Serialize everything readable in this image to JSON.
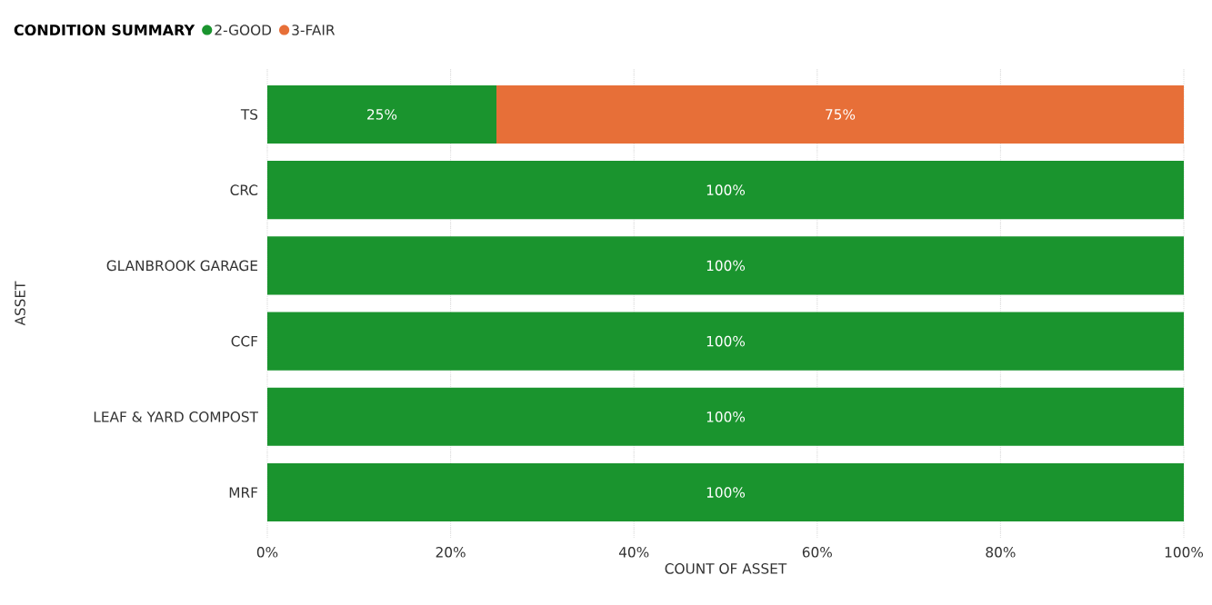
{
  "chart_data": {
    "type": "bar",
    "orientation": "horizontal",
    "stacked": true,
    "title": "CONDITION SUMMARY",
    "xlabel": "COUNT OF ASSET",
    "ylabel": "ASSET",
    "categories": [
      "TS",
      "CRC",
      "GLANBROOK GARAGE",
      "CCF",
      "LEAF & YARD COMPOST",
      "MRF"
    ],
    "series": [
      {
        "name": "2-GOOD",
        "color": "#1a942e",
        "values": [
          25,
          100,
          100,
          100,
          100,
          100
        ],
        "value_labels": [
          "25%",
          "100%",
          "100%",
          "100%",
          "100%",
          "100%"
        ]
      },
      {
        "name": "3-FAIR",
        "color": "#e76f38",
        "values": [
          75,
          null,
          null,
          null,
          null,
          null
        ],
        "value_labels": [
          "75%",
          null,
          null,
          null,
          null,
          null
        ]
      }
    ],
    "xlim": [
      0,
      100
    ],
    "xticks": [
      {
        "value": 0,
        "label": "0%"
      },
      {
        "value": 20,
        "label": "20%"
      },
      {
        "value": 40,
        "label": "40%"
      },
      {
        "value": 60,
        "label": "60%"
      },
      {
        "value": 80,
        "label": "80%"
      },
      {
        "value": 100,
        "label": "100%"
      }
    ],
    "grid": "x",
    "legend": "top left"
  }
}
